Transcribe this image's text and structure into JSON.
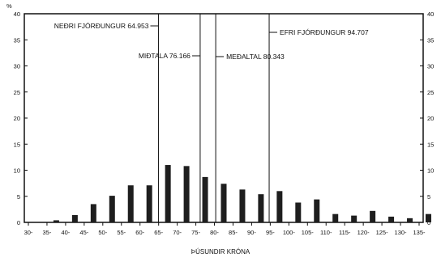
{
  "chart_data": {
    "type": "bar",
    "ylabel": "%",
    "xlabel": "ÞÚSUNDIR KRÓNA",
    "ylim": [
      0,
      40
    ],
    "yticks": [
      0,
      5,
      10,
      15,
      20,
      25,
      30,
      35,
      40
    ],
    "x_tick_labels": [
      "30-",
      "35-",
      "40-",
      "45-",
      "50-",
      "55-",
      "60-",
      "65-",
      "70-",
      "75-",
      "80-",
      "85-",
      "90-",
      "95-",
      "100-",
      "105-",
      "110-",
      "115-",
      "120-",
      "125-",
      "130-",
      "135-"
    ],
    "categories": [
      "30-",
      "35-",
      "40-",
      "45-",
      "50-",
      "55-",
      "60-",
      "65-",
      "70-",
      "75-",
      "80-",
      "85-",
      "90-",
      "95-",
      "100-",
      "105-",
      "110-",
      "115-",
      "120-",
      "125-",
      "130-",
      "135-"
    ],
    "values": [
      0,
      0.4,
      1.4,
      3.5,
      5.1,
      7.1,
      7.1,
      11.0,
      10.8,
      8.7,
      7.4,
      6.3,
      5.4,
      6.0,
      3.8,
      4.4,
      1.6,
      1.3,
      2.2,
      1.1,
      0.8,
      1.6
    ],
    "grid": false,
    "reference_lines": [
      {
        "label": "NEÐRI FJÓRÐUNGUR 64.953",
        "value": 64.953
      },
      {
        "label": "MIÐTALA 76.166",
        "value": 76.166
      },
      {
        "label": "MEÐALTAL 80.343",
        "value": 80.343
      },
      {
        "label": "EFRI FJÓRÐUNGUR 94.707",
        "value": 94.707
      }
    ]
  }
}
